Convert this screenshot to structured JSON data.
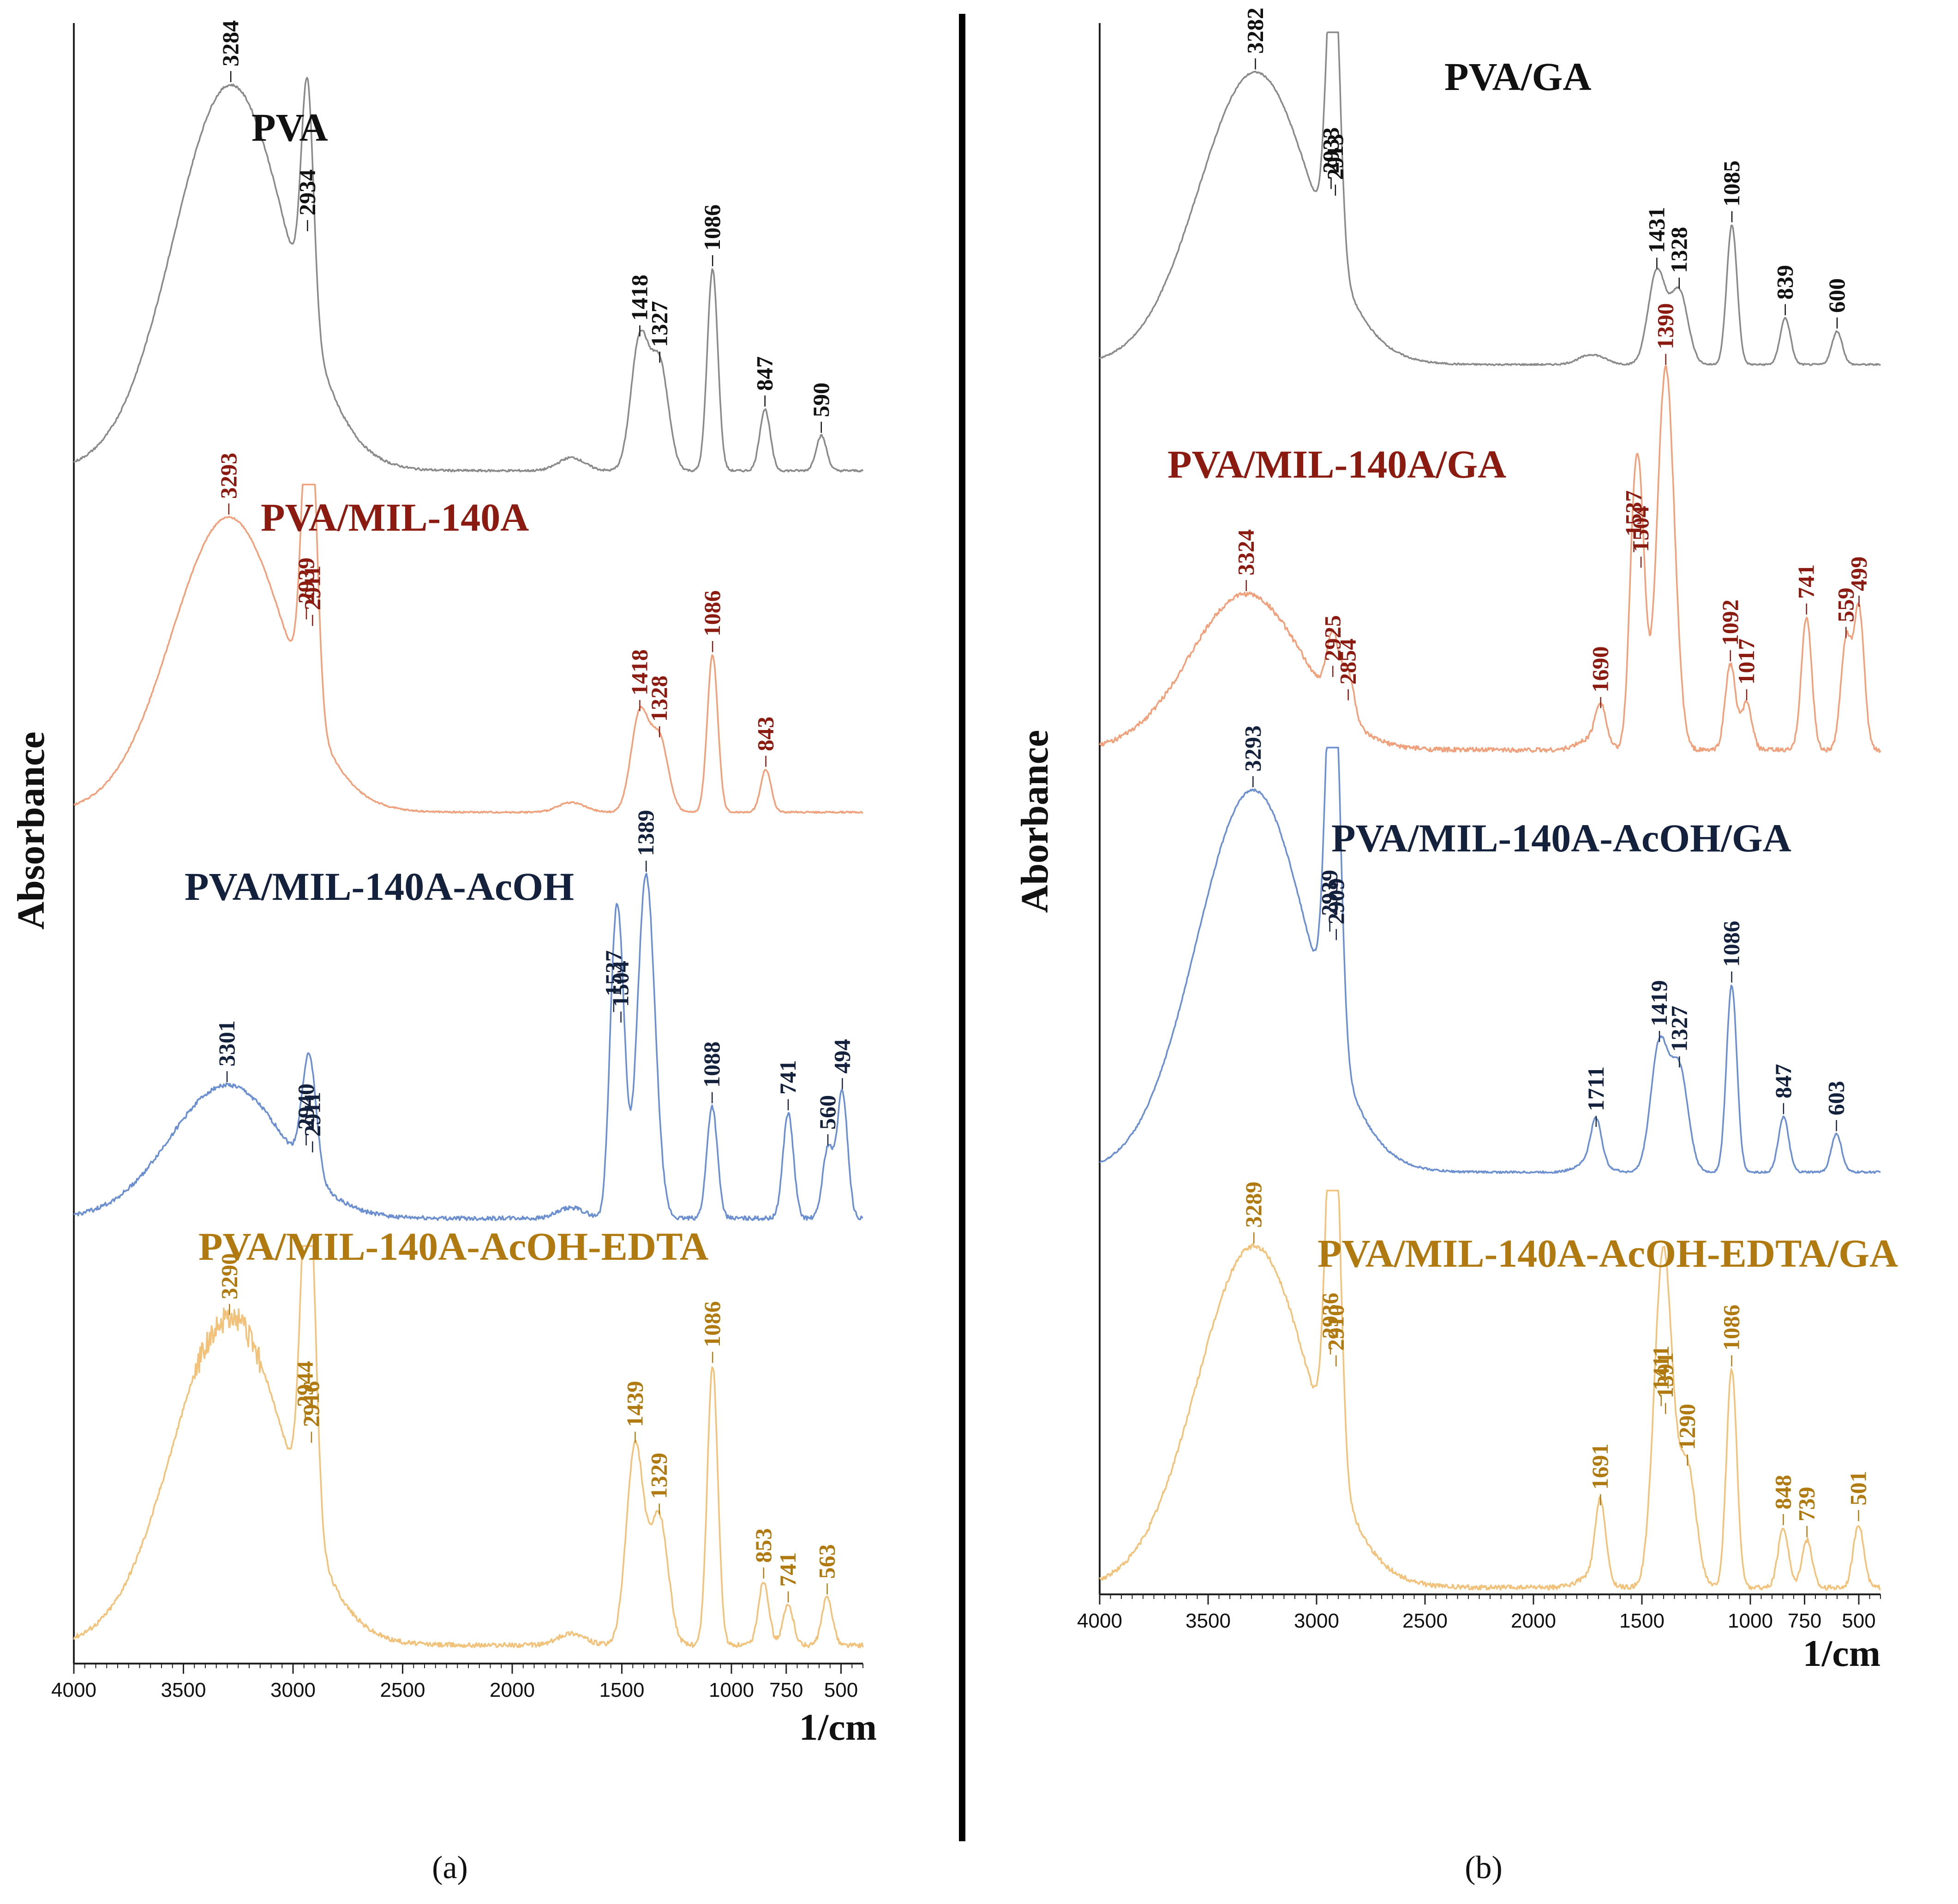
{
  "chart_data": [
    {
      "type": "line",
      "panel_label": "(a)",
      "ylabel": "Absorbance",
      "xlabel": "1/cm",
      "xlim": [
        4000,
        400
      ],
      "x_ticks": [
        4000,
        3500,
        3000,
        2500,
        2000,
        1500,
        1000,
        750,
        500
      ],
      "series": [
        {
          "name": "PVA",
          "color": "#8a8a8a",
          "label_color": "#111111",
          "peaks": [
            {
              "x": 3284,
              "label": "3284"
            },
            {
              "x": 2934,
              "label": "2934"
            },
            {
              "x": 1418,
              "label": "1418"
            },
            {
              "x": 1327,
              "label": "1327"
            },
            {
              "x": 1086,
              "label": "1086"
            },
            {
              "x": 847,
              "label": "847"
            },
            {
              "x": 590,
              "label": "590"
            }
          ]
        },
        {
          "name": "PVA/MIL-140A",
          "color": "#f0a07a",
          "label_color": "#8b1a10",
          "peaks": [
            {
              "x": 3293,
              "label": "3293"
            },
            {
              "x": 2939,
              "label": "2939"
            },
            {
              "x": 2911,
              "label": "2911"
            },
            {
              "x": 1418,
              "label": "1418"
            },
            {
              "x": 1328,
              "label": "1328"
            },
            {
              "x": 1086,
              "label": "1086"
            },
            {
              "x": 843,
              "label": "843"
            }
          ]
        },
        {
          "name": "PVA/MIL-140A-AcOH",
          "color": "#6b8fd0",
          "label_color": "#14213d",
          "peaks": [
            {
              "x": 3301,
              "label": "3301"
            },
            {
              "x": 2940,
              "label": "2940"
            },
            {
              "x": 2911,
              "label": "2911"
            },
            {
              "x": 1537,
              "label": "1537"
            },
            {
              "x": 1504,
              "label": "1504"
            },
            {
              "x": 1389,
              "label": "1389"
            },
            {
              "x": 1088,
              "label": "1088"
            },
            {
              "x": 741,
              "label": "741"
            },
            {
              "x": 560,
              "label": "560"
            },
            {
              "x": 494,
              "label": "494"
            }
          ]
        },
        {
          "name": "PVA/MIL-140A-AcOH-EDTA",
          "color": "#f2c27a",
          "label_color": "#b07a10",
          "peaks": [
            {
              "x": 3290,
              "label": "3290"
            },
            {
              "x": 2944,
              "label": "2944"
            },
            {
              "x": 2916,
              "label": "2916"
            },
            {
              "x": 1439,
              "label": "1439"
            },
            {
              "x": 1329,
              "label": "1329"
            },
            {
              "x": 1086,
              "label": "1086"
            },
            {
              "x": 853,
              "label": "853"
            },
            {
              "x": 741,
              "label": "741"
            },
            {
              "x": 563,
              "label": "563"
            }
          ]
        }
      ]
    },
    {
      "type": "line",
      "panel_label": "(b)",
      "ylabel": "Aborbance",
      "xlabel": "1/cm",
      "xlim": [
        4000,
        400
      ],
      "x_ticks": [
        4000,
        3500,
        3000,
        2500,
        2000,
        1500,
        1000,
        750,
        500
      ],
      "series": [
        {
          "name": "PVA/GA",
          "color": "#8a8a8a",
          "label_color": "#111111",
          "peaks": [
            {
              "x": 3282,
              "label": "3282"
            },
            {
              "x": 2933,
              "label": "2933"
            },
            {
              "x": 2913,
              "label": "2913"
            },
            {
              "x": 1431,
              "label": "1431"
            },
            {
              "x": 1328,
              "label": "1328"
            },
            {
              "x": 1085,
              "label": "1085"
            },
            {
              "x": 839,
              "label": "839"
            },
            {
              "x": 600,
              "label": "600"
            }
          ]
        },
        {
          "name": "PVA/MIL-140A/GA",
          "color": "#f0a07a",
          "label_color": "#8b1a10",
          "peaks": [
            {
              "x": 3324,
              "label": "3324"
            },
            {
              "x": 2925,
              "label": "2925"
            },
            {
              "x": 2854,
              "label": "2854"
            },
            {
              "x": 1690,
              "label": "1690"
            },
            {
              "x": 1537,
              "label": "1537"
            },
            {
              "x": 1504,
              "label": "1504"
            },
            {
              "x": 1390,
              "label": "1390"
            },
            {
              "x": 1092,
              "label": "1092"
            },
            {
              "x": 1017,
              "label": "1017"
            },
            {
              "x": 741,
              "label": "741"
            },
            {
              "x": 559,
              "label": "559"
            },
            {
              "x": 499,
              "label": "499"
            }
          ]
        },
        {
          "name": "PVA/MIL-140A-AcOH/GA",
          "color": "#6b8fd0",
          "label_color": "#14213d",
          "peaks": [
            {
              "x": 3293,
              "label": "3293"
            },
            {
              "x": 2939,
              "label": "2939"
            },
            {
              "x": 2909,
              "label": "2909"
            },
            {
              "x": 1711,
              "label": "1711"
            },
            {
              "x": 1419,
              "label": "1419"
            },
            {
              "x": 1327,
              "label": "1327"
            },
            {
              "x": 1086,
              "label": "1086"
            },
            {
              "x": 847,
              "label": "847"
            },
            {
              "x": 603,
              "label": "603"
            }
          ]
        },
        {
          "name": "PVA/MIL-140A-AcOH-EDTA/GA",
          "color": "#f2c27a",
          "label_color": "#b07a10",
          "peaks": [
            {
              "x": 3289,
              "label": "3289"
            },
            {
              "x": 2936,
              "label": "2936"
            },
            {
              "x": 2910,
              "label": "2910"
            },
            {
              "x": 1691,
              "label": "1691"
            },
            {
              "x": 1411,
              "label": "1411"
            },
            {
              "x": 1391,
              "label": "1391"
            },
            {
              "x": 1290,
              "label": "1290"
            },
            {
              "x": 1086,
              "label": "1086"
            },
            {
              "x": 848,
              "label": "848"
            },
            {
              "x": 739,
              "label": "739"
            },
            {
              "x": 501,
              "label": "501"
            }
          ]
        }
      ]
    }
  ]
}
